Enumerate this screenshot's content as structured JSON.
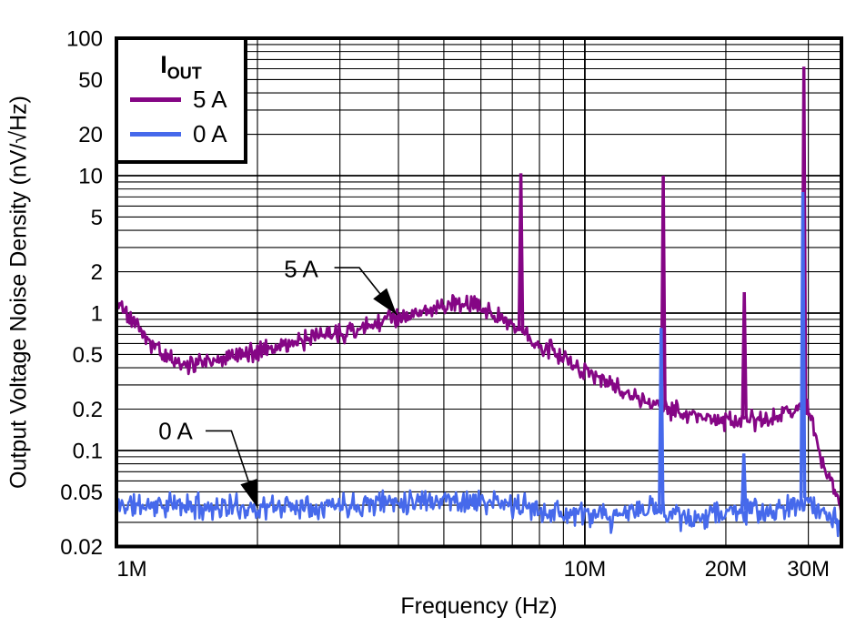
{
  "chart": {
    "legend": {
      "title_main": "I",
      "title_sub": "OUT",
      "items": [
        {
          "label": "5 A",
          "color": "#850685"
        },
        {
          "label": "0 A",
          "color": "#4669EB"
        }
      ]
    },
    "annotations": [
      {
        "label": "5 A",
        "line_f_mhz": [
          2.92,
          3.3,
          3.97
        ],
        "line_v": [
          2.14,
          2.14,
          0.97
        ]
      },
      {
        "label": "0 A",
        "line_f_mhz": [
          1.55,
          1.76,
          2.0
        ],
        "line_v": [
          0.139,
          0.139,
          0.0385
        ]
      }
    ]
  },
  "chart_data": {
    "type": "line",
    "title": "",
    "x_axis": {
      "label": "Frequency (Hz)",
      "scale": "log",
      "min_mhz": 1,
      "max_mhz": 35.3,
      "ticks": [
        {
          "label": "1M",
          "f_mhz": 1,
          "dx": 17
        },
        {
          "label": "10M",
          "f_mhz": 10,
          "dx": 0
        },
        {
          "label": "20M",
          "f_mhz": 20,
          "dx": 0
        },
        {
          "label": "30M",
          "f_mhz": 30,
          "dx": 0
        }
      ]
    },
    "y_axis": {
      "label": "Output Voltage Noise Density (nV/√Hz)",
      "scale": "log",
      "min": 0.02,
      "max": 100,
      "ticks": [
        {
          "label": "100",
          "v": 100
        },
        {
          "label": "50",
          "v": 50
        },
        {
          "label": "20",
          "v": 20
        },
        {
          "label": "10",
          "v": 10
        },
        {
          "label": "5",
          "v": 5
        },
        {
          "label": "2",
          "v": 2
        },
        {
          "label": "1",
          "v": 1
        },
        {
          "label": "0.5",
          "v": 0.5
        },
        {
          "label": "0.2",
          "v": 0.2
        },
        {
          "label": "0.1",
          "v": 0.1
        },
        {
          "label": "0.05",
          "v": 0.05
        },
        {
          "label": "0.02",
          "v": 0.02
        }
      ]
    },
    "grid": {
      "color": "#000000",
      "minor_width": 1.1,
      "major_width": 1.8
    },
    "series": [
      {
        "name": "5 A",
        "color": "#850685",
        "noise_amp_log": 0.085,
        "seed": 5,
        "stroke_width": 2.8,
        "points": [
          [
            1.0,
            1.2
          ],
          [
            1.04,
            1.05
          ],
          [
            1.08,
            0.9
          ],
          [
            1.15,
            0.68
          ],
          [
            1.22,
            0.55
          ],
          [
            1.3,
            0.47
          ],
          [
            1.4,
            0.42
          ],
          [
            1.5,
            0.44
          ],
          [
            1.6,
            0.46
          ],
          [
            1.75,
            0.49
          ],
          [
            1.9,
            0.51
          ],
          [
            2.0,
            0.52
          ],
          [
            2.15,
            0.56
          ],
          [
            2.3,
            0.6
          ],
          [
            2.5,
            0.64
          ],
          [
            2.7,
            0.68
          ],
          [
            3.0,
            0.72
          ],
          [
            3.2,
            0.74
          ],
          [
            3.5,
            0.8
          ],
          [
            3.8,
            0.88
          ],
          [
            4.0,
            0.95
          ],
          [
            4.3,
            1.0
          ],
          [
            4.6,
            1.05
          ],
          [
            5.0,
            1.12
          ],
          [
            5.3,
            1.18
          ],
          [
            5.6,
            1.22
          ],
          [
            5.9,
            1.15
          ],
          [
            6.2,
            1.02
          ],
          [
            6.6,
            0.9
          ],
          [
            7.0,
            0.8
          ],
          [
            7.5,
            0.7
          ],
          [
            8.0,
            0.6
          ],
          [
            8.5,
            0.53
          ],
          [
            9.0,
            0.47
          ],
          [
            9.5,
            0.43
          ],
          [
            10.0,
            0.39
          ],
          [
            11.0,
            0.33
          ],
          [
            12.0,
            0.28
          ],
          [
            13.0,
            0.24
          ],
          [
            14.0,
            0.215
          ],
          [
            15.0,
            0.2
          ],
          [
            16.0,
            0.19
          ],
          [
            17.0,
            0.175
          ],
          [
            18.0,
            0.17
          ],
          [
            19.0,
            0.165
          ],
          [
            20.0,
            0.165
          ],
          [
            21.0,
            0.165
          ],
          [
            22.0,
            0.17
          ],
          [
            23.0,
            0.165
          ],
          [
            24.0,
            0.165
          ],
          [
            25.0,
            0.17
          ],
          [
            26.0,
            0.175
          ],
          [
            27.0,
            0.19
          ],
          [
            28.0,
            0.18
          ],
          [
            28.8,
            0.21
          ],
          [
            29.5,
            0.22
          ],
          [
            30.0,
            0.2
          ],
          [
            30.5,
            0.17
          ],
          [
            31.0,
            0.13
          ],
          [
            32.0,
            0.09
          ],
          [
            33.0,
            0.065
          ],
          [
            34.0,
            0.052
          ],
          [
            35.3,
            0.037
          ]
        ],
        "spikes": [
          [
            7.3,
            10.4
          ],
          [
            14.7,
            10.0
          ],
          [
            21.9,
            1.42
          ],
          [
            29.35,
            62
          ]
        ]
      },
      {
        "name": "0 A",
        "color": "#4669EB",
        "noise_amp_log": 0.11,
        "seed": 11,
        "stroke_width": 2.6,
        "points": [
          [
            1.0,
            0.04
          ],
          [
            1.3,
            0.04
          ],
          [
            1.6,
            0.039
          ],
          [
            2.0,
            0.038
          ],
          [
            2.4,
            0.04
          ],
          [
            2.8,
            0.04
          ],
          [
            3.2,
            0.041
          ],
          [
            3.6,
            0.042
          ],
          [
            4.0,
            0.043
          ],
          [
            4.5,
            0.044
          ],
          [
            5.0,
            0.044
          ],
          [
            5.5,
            0.043
          ],
          [
            6.0,
            0.042
          ],
          [
            6.5,
            0.041
          ],
          [
            7.0,
            0.04
          ],
          [
            7.6,
            0.038
          ],
          [
            8.2,
            0.037
          ],
          [
            9.0,
            0.035
          ],
          [
            10.0,
            0.034
          ],
          [
            11.0,
            0.033
          ],
          [
            11.5,
            0.03
          ],
          [
            12.0,
            0.035
          ],
          [
            13.0,
            0.037
          ],
          [
            14.0,
            0.038
          ],
          [
            14.6,
            0.037
          ],
          [
            15.5,
            0.036
          ],
          [
            16.5,
            0.031
          ],
          [
            17.0,
            0.028
          ],
          [
            17.5,
            0.033
          ],
          [
            18.5,
            0.036
          ],
          [
            19.5,
            0.035
          ],
          [
            20.5,
            0.036
          ],
          [
            21.5,
            0.037
          ],
          [
            22.5,
            0.036
          ],
          [
            23.5,
            0.036
          ],
          [
            24.5,
            0.035
          ],
          [
            25.5,
            0.036
          ],
          [
            26.5,
            0.037
          ],
          [
            27.5,
            0.038
          ],
          [
            28.5,
            0.041
          ],
          [
            29.2,
            0.045
          ],
          [
            30.0,
            0.042
          ],
          [
            31.0,
            0.038
          ],
          [
            32.0,
            0.036
          ],
          [
            33.0,
            0.034
          ],
          [
            34.0,
            0.032
          ],
          [
            35.3,
            0.029
          ]
        ],
        "spikes": [
          [
            14.55,
            0.78
          ],
          [
            21.85,
            0.095
          ],
          [
            29.2,
            7.6
          ]
        ]
      }
    ]
  }
}
